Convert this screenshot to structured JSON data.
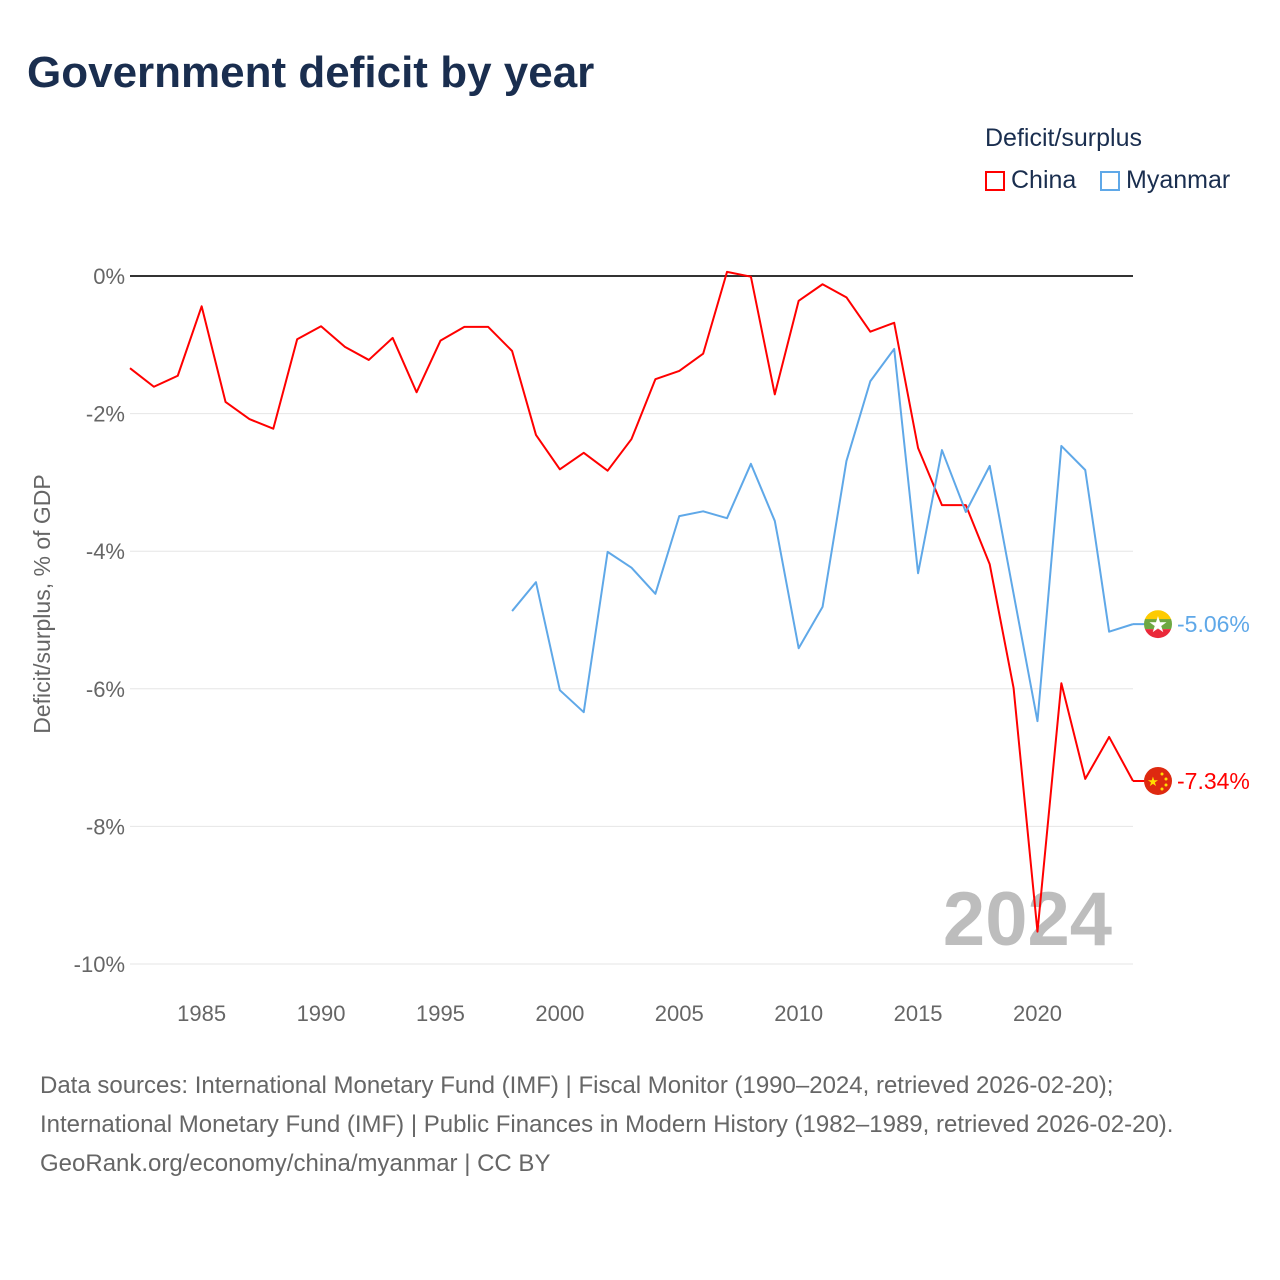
{
  "chart_data": {
    "type": "line",
    "title": "Government deficit by year",
    "ylabel": "Deficit/surplus, % of GDP",
    "xlabel": "",
    "ylim": [
      -10,
      0
    ],
    "xlim": [
      1982,
      2024
    ],
    "yticks": [
      0,
      -2,
      -4,
      -6,
      -8,
      -10
    ],
    "ytick_labels": [
      "0%",
      "-2%",
      "-4%",
      "-6%",
      "-8%",
      "-10%"
    ],
    "xticks": [
      1985,
      1990,
      1995,
      2000,
      2005,
      2010,
      2015,
      2020
    ],
    "xtick_labels": [
      "1985",
      "1990",
      "1995",
      "2000",
      "2005",
      "2010",
      "2015",
      "2020"
    ],
    "grid": true,
    "legend_title": "Deficit/surplus",
    "legend_position": "top-right",
    "watermark_year": "2024",
    "series": [
      {
        "name": "China",
        "color": "#ff0000",
        "end_label": "-7.34%",
        "start_year": 1982,
        "values": [
          -1.34,
          -1.61,
          -1.45,
          -0.44,
          -1.83,
          -2.08,
          -2.22,
          -0.92,
          -0.73,
          -1.03,
          -1.22,
          -0.9,
          -1.69,
          -0.94,
          -0.74,
          -0.74,
          -1.09,
          -2.31,
          -2.81,
          -2.57,
          -2.83,
          -2.37,
          -1.5,
          -1.38,
          -1.13,
          0.06,
          -0.01,
          -1.72,
          -0.36,
          -0.12,
          -0.31,
          -0.81,
          -0.68,
          -2.5,
          -3.33,
          -3.33,
          -4.19,
          -5.99,
          -9.53,
          -5.92,
          -7.31,
          -6.7,
          -7.34
        ]
      },
      {
        "name": "Myanmar",
        "color": "#5fa8e8",
        "end_label": "-5.06%",
        "start_year": 1998,
        "values": [
          -4.87,
          -4.45,
          -6.02,
          -6.34,
          -4.01,
          -4.24,
          -4.62,
          -3.49,
          -3.42,
          -3.52,
          -2.73,
          -3.56,
          -5.41,
          -4.81,
          -2.69,
          -1.53,
          -1.06,
          -4.32,
          -2.53,
          -3.43,
          -2.76,
          -4.62,
          -6.47,
          -2.47,
          -2.82,
          -5.17,
          -5.06
        ]
      }
    ]
  },
  "sources": {
    "line1": "Data sources: International Monetary Fund (IMF) | Fiscal Monitor (1990–2024, retrieved 2026-02-20); International Monetary Fund (IMF) | Public Finances in Modern History (1982–1989, retrieved 2026-02-20).",
    "credit": "GeoRank.org/economy/china/myanmar | CC BY"
  }
}
